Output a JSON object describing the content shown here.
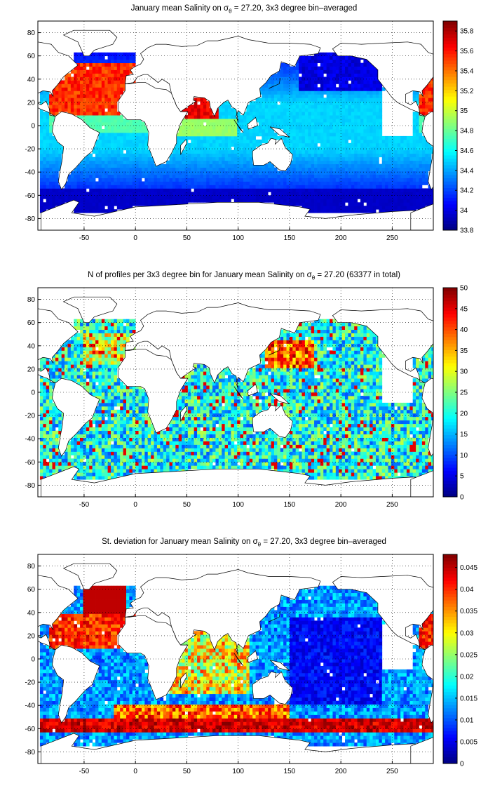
{
  "chart_data": [
    {
      "type": "heatmap",
      "title": "January mean Salinity on σθ = 27.20, 3x3 degree bin–averaged",
      "title_parts": [
        "January mean Salinity on σ",
        "θ",
        " = 27.20, 3x3 degree bin–averaged"
      ],
      "x_ticks": [
        -50,
        0,
        50,
        100,
        150,
        200,
        250
      ],
      "y_ticks": [
        80,
        60,
        40,
        20,
        0,
        -20,
        -40,
        -60,
        -80
      ],
      "xlim": [
        -95,
        290
      ],
      "ylim": [
        -90,
        90
      ],
      "grid": true,
      "colorbar": {
        "ticks": [
          35.8,
          35.6,
          35.4,
          35.2,
          35,
          34.8,
          34.6,
          34.4,
          34.2,
          34,
          33.8
        ],
        "range": [
          33.8,
          35.9
        ]
      },
      "pattern": "salinity"
    },
    {
      "type": "heatmap",
      "title": "N of profiles per 3x3 degree bin for January mean Salinity on σθ = 27.20 (63377 in total)",
      "title_parts": [
        "N of profiles per 3x3 degree bin for January mean Salinity on σ",
        "θ",
        " = 27.20 (63377 in total)"
      ],
      "x_ticks": [
        -50,
        0,
        50,
        100,
        150,
        200,
        250
      ],
      "y_ticks": [
        80,
        60,
        40,
        20,
        0,
        -20,
        -40,
        -60,
        -80
      ],
      "xlim": [
        -95,
        290
      ],
      "ylim": [
        -90,
        90
      ],
      "grid": true,
      "colorbar": {
        "ticks": [
          50,
          45,
          40,
          35,
          30,
          25,
          20,
          15,
          10,
          5,
          0
        ],
        "range": [
          0,
          50
        ]
      },
      "pattern": "count"
    },
    {
      "type": "heatmap",
      "title": "St. deviation for January mean Salinity on σθ = 27.20, 3x3 degree bin–averaged",
      "title_parts": [
        "St. deviation for January mean Salinity on σ",
        "θ",
        " = 27.20, 3x3 degree bin–averaged"
      ],
      "x_ticks": [
        -50,
        0,
        50,
        100,
        150,
        200,
        250
      ],
      "y_ticks": [
        80,
        60,
        40,
        20,
        0,
        -20,
        -40,
        -60,
        -80
      ],
      "xlim": [
        -95,
        290
      ],
      "ylim": [
        -90,
        90
      ],
      "grid": true,
      "colorbar": {
        "ticks": [
          0.045,
          0.04,
          0.035,
          0.03,
          0.025,
          0.02,
          0.015,
          0.01,
          0.005,
          0
        ],
        "range": [
          0,
          0.048
        ]
      },
      "pattern": "stdev"
    }
  ]
}
